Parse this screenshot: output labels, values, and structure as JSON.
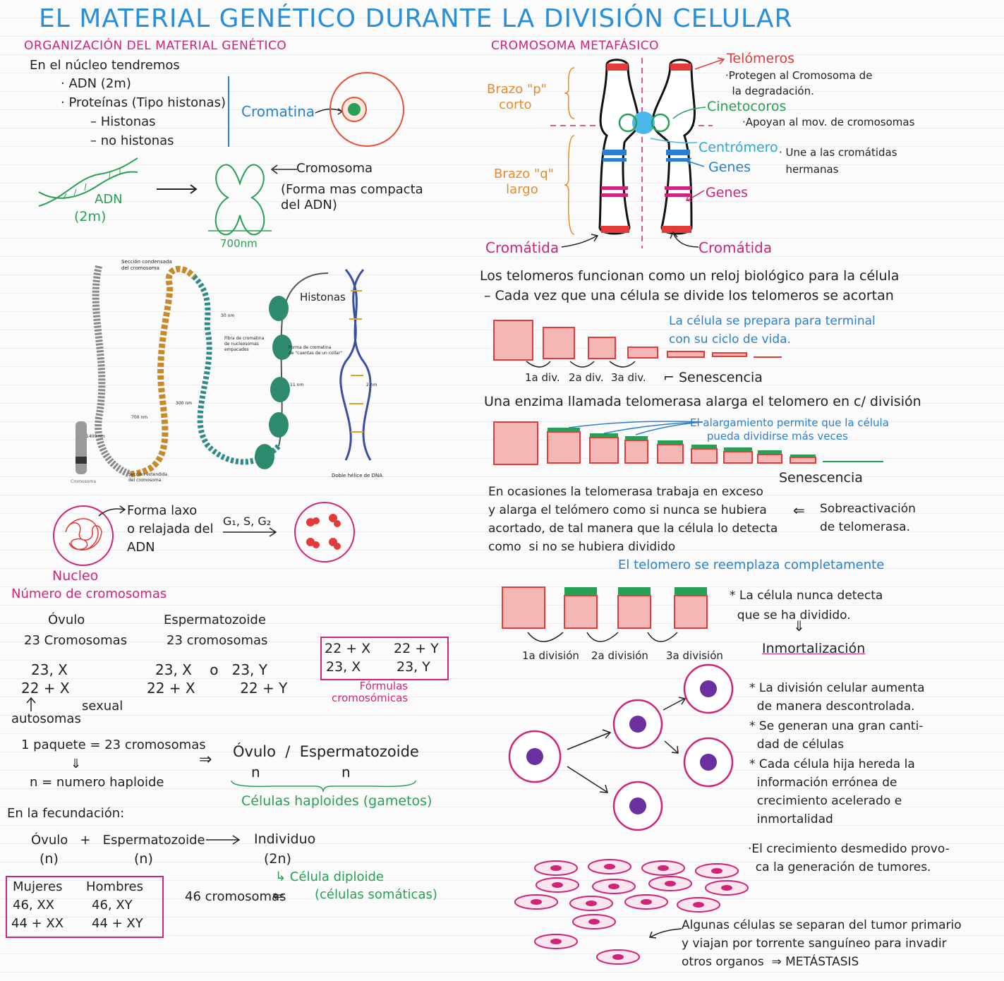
{
  "title": "EL MATERIAL GENÉTICO DURANTE LA DIVISIÓN CELULAR",
  "left": {
    "org_heading": "ORGANIZACIÓN DEL MATERIAL GENÉTICO",
    "nucleus_intro": "En el núcleo tendremos",
    "items": [
      "· ADN (2m)",
      "· Proteínas (Tipo histonas)",
      "– Histonas",
      "– no histonas"
    ],
    "cromatina": "Cromatina",
    "adn_label": "ADN",
    "adn_len": "(2m)",
    "cromosoma_label": "Cromosoma",
    "cromosoma_desc": "(Forma mas compacta\ndel ADN)",
    "size_label": "700nm",
    "fig_labels": {
      "seccion_condensada": "Sección condensada\ndel cromosoma",
      "histonas": "Histonas",
      "nm30": "30 nm",
      "fibra": "Fibra de cromatina\nde nucleosomas\nempacados",
      "forma_collar": "Forma de cromatina\nde \"cuentas de un collar\"",
      "nm300": "300 nm",
      "nm11": "11 nm",
      "nm2": "2 nm",
      "nm700": "700 nm",
      "nm1400": "1400 nm",
      "cromosoma": "Cromosoma",
      "seccion_extendida": "Sección extendida\ndel cromosoma",
      "doble_helice": "Doble hélice de DNA"
    },
    "nucleo_desc": "Forma laxo\no relajada del\nADN",
    "phases": "G₁, S, G₂",
    "nucleo_label": "Nucleo",
    "numero_heading": "Número de cromosomas",
    "ovulo": "Óvulo",
    "ovulo_count": "23 Cromosomas",
    "esperm": "Espermatozoide",
    "esperm_count": "23 cromosomas",
    "ovulo_formula1": "23, X",
    "ovulo_formula2": "22 + X",
    "esperm_formula1": "23, X    o   23, Y",
    "esperm_formula2": "22 + X          22 + Y",
    "autosomas": "autosomas",
    "sexual": "sexual",
    "formula_box": [
      "22 + X",
      "22 + Y",
      "23, X",
      "23, Y"
    ],
    "formulas_label": "Fórmulas\ncromosómicas",
    "paquete": "1 paquete = 23 cromosomas",
    "haploide": "n = numero haploide",
    "result_ovulo_esperm": "Óvulo  /  Espermatozoide",
    "n1": "n",
    "n2": "n",
    "celulas_haploides": "Células haploides (gametos)",
    "fecundacion": "En la fecundación:",
    "fec_ovulo": "Óvulo   +   Espermatozoide",
    "fec_n1": "(n)",
    "fec_n2": "(n)",
    "individuo": "Individuo",
    "individuo_n": "(2n)",
    "celula_diploide": "Célula diploide",
    "celulas_somaticas": "(células somáticas)",
    "cromosomas46": "46 cromosomas",
    "mujeres": "Mujeres",
    "hombres": "Hombres",
    "mujeres_f1": "46, XX",
    "hombres_f1": "46, XY",
    "mujeres_f2": "44 + XX",
    "hombres_f2": "44 + XY"
  },
  "right": {
    "heading": "CROMOSOMA METAFÁSICO",
    "telomeros": "Telómeros",
    "telomeros_desc": "·Protegen al Cromosoma de\n  la degradación.",
    "cinetocoros": "Cinetocoros",
    "cinetocoros_desc": "·Apoyan al mov. de cromosomas",
    "centromero": "Centrómero",
    "centromero_desc": "· Une a las cromátidas\n  hermanas",
    "genes1": "Genes",
    "genes2": "Genes",
    "brazo_p": "Brazo \"p\"\n   corto",
    "brazo_q": "Brazo \"q\"\n   largo",
    "cromatida_left": "Cromátida",
    "cromatida_right": "Cromátida",
    "tel_reloj1": "Los telomeros funcionan como un reloj biológico para la célula",
    "tel_reloj2": "– Cada vez que una célula se divide los telomeros se acortan",
    "prepara": "La célula se prepara para terminal\ncon su ciclo de vida.",
    "div1": "1a div.",
    "div2": "2a div.",
    "div3": "3a div.",
    "senescencia1": "Senescencia",
    "enzima": "Una enzima llamada telomerasa alarga el telomero en c/ división",
    "alargamiento": "El alargamiento permite que la célula\n     pueda dividirse más veces",
    "senescencia2": "Senescencia",
    "exceso": "En ocasiones la telomerasa trabaja en exceso\ny alarga el telómero como si nunca se hubiera\nacortado, de tal manera que la célula lo detecta\ncomo  si no se hubiera dividido",
    "sobreactivacion": "Sobreactivación\nde telomerasa.",
    "reemplaza": "El telomero se reemplaza completamente",
    "nunca": "* La célula nunca detecta\n  que se ha dividido.",
    "division1": "1a división",
    "division2": "2a división",
    "division3": "3a división",
    "inmortalizacion": "Inmortalización",
    "bullets": [
      "* La división celular aumenta\n  de manera descontrolada.",
      "* Se generan una gran canti-\n  dad de células",
      "* Cada célula hija hereda la\n  información errónea de\n  crecimiento acelerado e\n  inmortalidad"
    ],
    "tumores": "·El crecimiento desmedido provo-\n  ca la generación de tumores.",
    "metastasis": "Algunas células se separan del tumor primario\ny viajan por torrente sanguíneo para invadir\notros organos  ⇒ METÁSTASIS"
  },
  "colors": {
    "title": "#2a8fd8",
    "magenta": "#d0247a",
    "red": "#e43a3a",
    "green": "#27a055",
    "blue": "#2a80d0",
    "orange": "#e68a2e",
    "purple": "#6b2fa0"
  }
}
